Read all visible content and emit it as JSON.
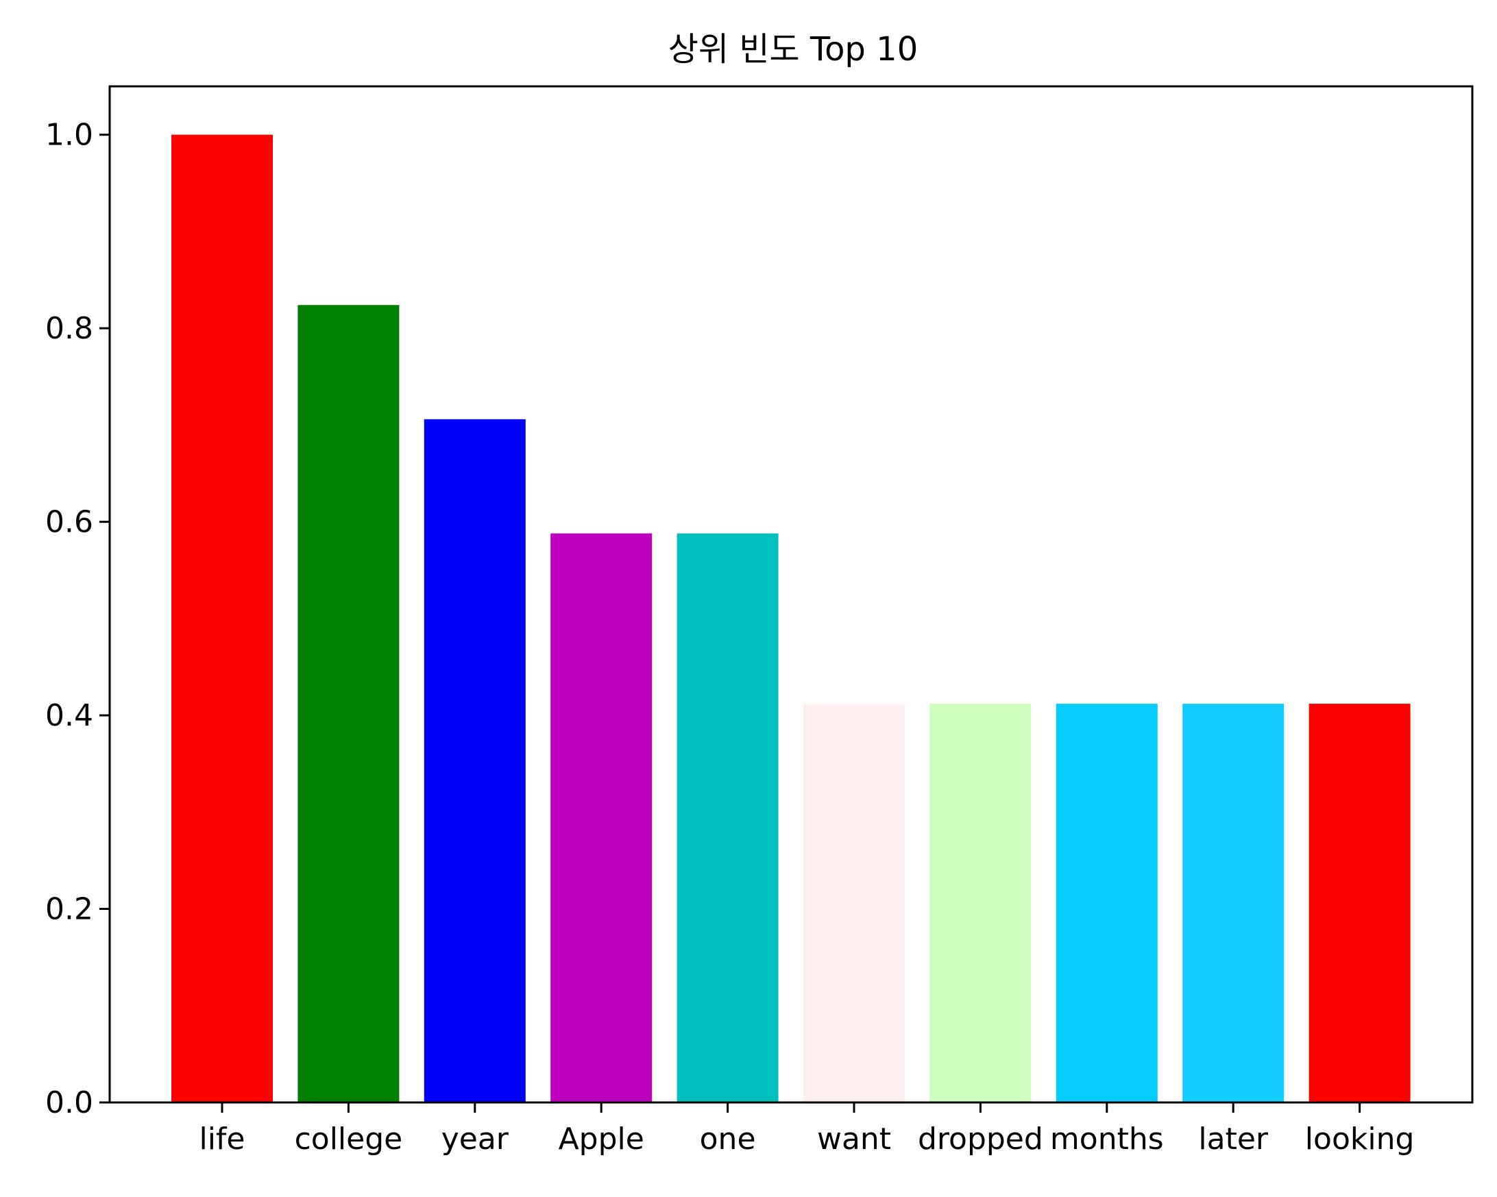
{
  "chart_data": {
    "type": "bar",
    "title": "상위 빈도 Top 10",
    "xlabel": "",
    "ylabel": "",
    "categories": [
      "life",
      "college",
      "year",
      "Apple",
      "one",
      "want",
      "dropped",
      "months",
      "later",
      "looking"
    ],
    "values": [
      1.0,
      0.824,
      0.706,
      0.588,
      0.588,
      0.412,
      0.412,
      0.412,
      0.412,
      0.412
    ],
    "colors": [
      "#ff0000",
      "#008000",
      "#0000ff",
      "#bf00bf",
      "#00bfbf",
      "#fff0f0",
      "#ccffbb",
      "#05ccff",
      "#11ccff",
      "#ff0000"
    ],
    "ylim": [
      0,
      1.05
    ],
    "yticks": [
      0.0,
      0.2,
      0.4,
      0.6,
      0.8,
      1.0
    ],
    "ytick_labels": [
      "0.0",
      "0.2",
      "0.4",
      "0.6",
      "0.8",
      "1.0"
    ],
    "grid": false,
    "legend": "none"
  }
}
